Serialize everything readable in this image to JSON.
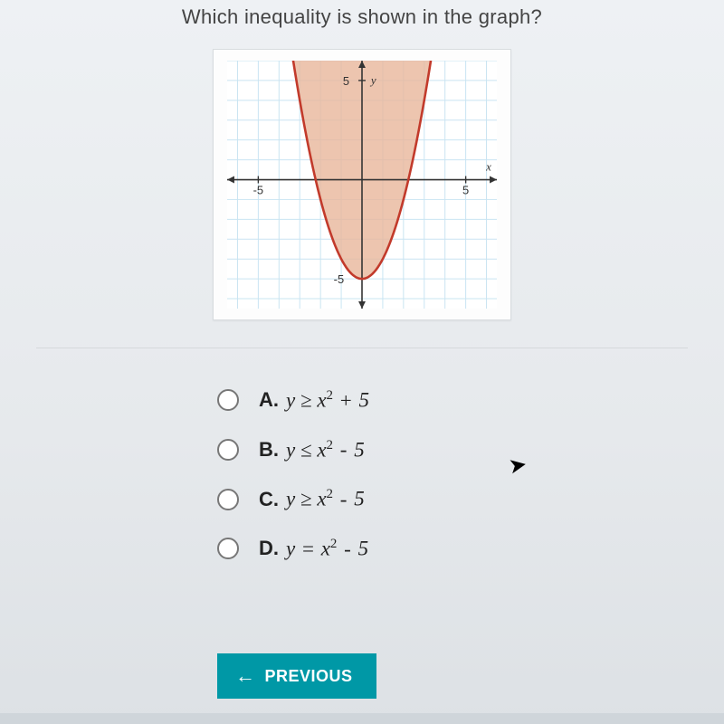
{
  "question": {
    "title": "Which inequality is shown in the graph?"
  },
  "graph": {
    "type": "inequality-region",
    "xlim": [
      -6.5,
      6.5
    ],
    "ylim": [
      -6.5,
      6
    ],
    "grid_step": 1,
    "grid_color": "#c9e4f2",
    "background_color": "#ffffff",
    "axis_color": "#333333",
    "axis_arrow": true,
    "labels": {
      "x": "x",
      "y": "y",
      "x_tick": {
        "pos": 5,
        "text": "5"
      },
      "x_tick_neg": {
        "pos": -5,
        "text": "-5"
      },
      "y_tick": {
        "pos": 5,
        "text": "5"
      },
      "y_tick_neg": {
        "pos": -5,
        "text": "-5"
      }
    },
    "label_fontsize": 13,
    "label_color": "#333333",
    "parabola": {
      "equation": "y = x^2 - 5",
      "vertex": [
        0,
        -5
      ],
      "a": 1,
      "line_color": "#c23a2b",
      "line_width": 2.6,
      "fill_color": "#e8b79bcc",
      "fill_region": "inside_up"
    }
  },
  "answers": {
    "options": [
      {
        "key": "A",
        "label": "A.",
        "expr_html": "y &ge; x<span class='sup'>2</span> <span class='op'>+</span> 5"
      },
      {
        "key": "B",
        "label": "B.",
        "expr_html": "y &le; x<span class='sup'>2</span> <span class='op'>-</span> 5"
      },
      {
        "key": "C",
        "label": "C.",
        "expr_html": "y &ge; x<span class='sup'>2</span> <span class='op'>-</span> 5"
      },
      {
        "key": "D",
        "label": "D.",
        "expr_html": "y <span class='op'>=</span> x<span class='sup'>2</span> <span class='op'>-</span> 5"
      }
    ],
    "selected": null
  },
  "nav": {
    "previous_label": "PREVIOUS"
  },
  "colors": {
    "button_bg": "#0098a6",
    "button_fg": "#ffffff"
  }
}
